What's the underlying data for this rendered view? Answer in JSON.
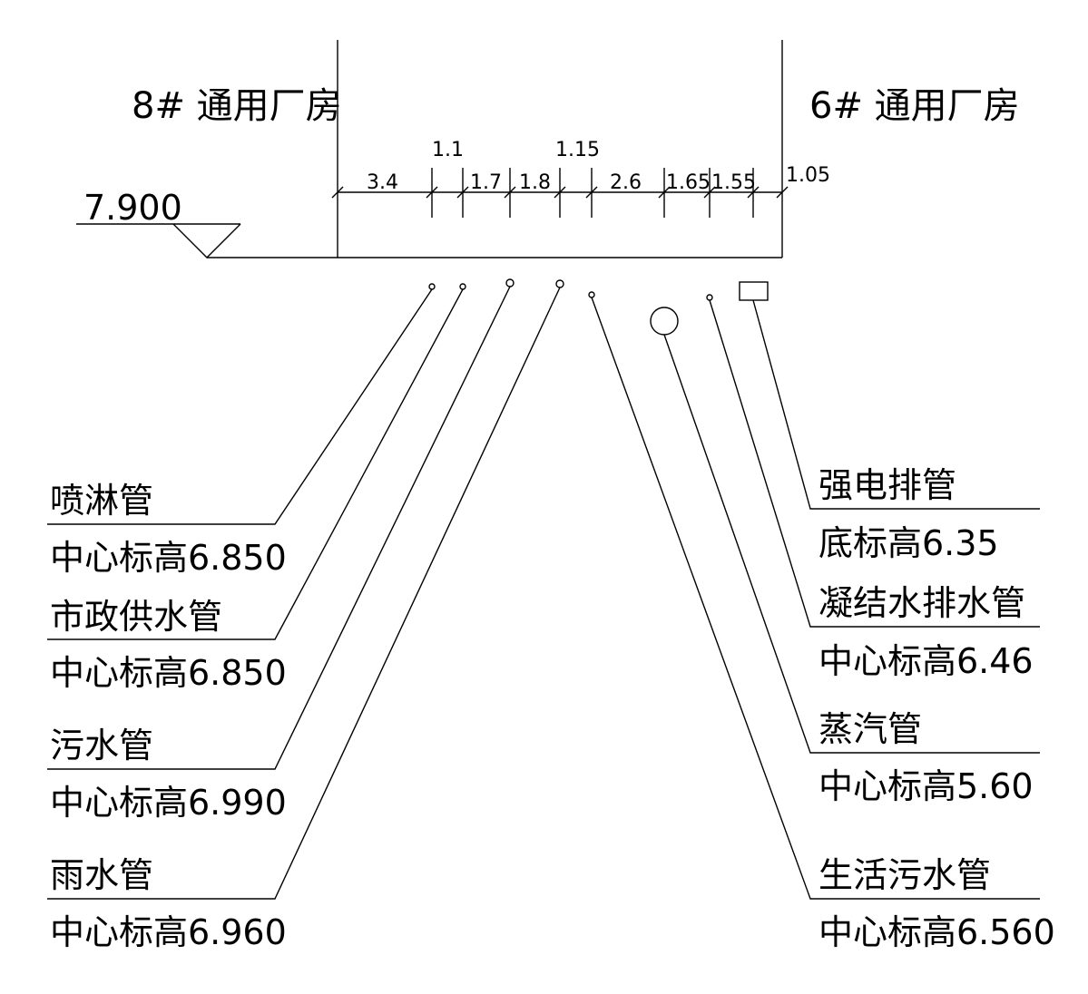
{
  "buildings": {
    "left": "8# 通用厂房",
    "right": "6# 通用厂房"
  },
  "ground_elevation": "7.900",
  "dimensions": {
    "segments": [
      "3.4",
      "1.1",
      "1.7",
      "1.8",
      "1.15",
      "2.6",
      "1.65",
      "1.55",
      "1.05"
    ]
  },
  "pipes_left": [
    {
      "name": "喷淋管",
      "elevation": "中心标高6.850"
    },
    {
      "name": "市政供水管",
      "elevation": "中心标高6.850"
    },
    {
      "name": "污水管",
      "elevation": "中心标高6.990"
    },
    {
      "name": "雨水管",
      "elevation": "中心标高6.960"
    }
  ],
  "pipes_right": [
    {
      "name": "强电排管",
      "elevation": "底标高6.35"
    },
    {
      "name": "凝结水排水管",
      "elevation": "中心标高6.46"
    },
    {
      "name": "蒸汽管",
      "elevation": "中心标高5.60"
    },
    {
      "name": "生活污水管",
      "elevation": "中心标高6.560"
    }
  ]
}
